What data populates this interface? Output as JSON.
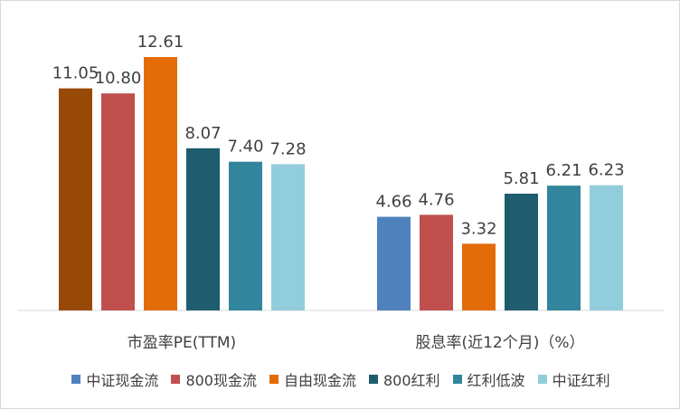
{
  "chart_data": {
    "type": "bar",
    "categories": [
      "市盈率PE(TTM)",
      "股息率(近12个月)（%）"
    ],
    "series": [
      {
        "name": "中证现金流",
        "values": [
          11.05,
          4.66
        ],
        "color": "#4F81BD",
        "labels": [
          "11.05",
          "4.66"
        ]
      },
      {
        "name": "800现金流",
        "values": [
          10.8,
          4.76
        ],
        "color": "#C0504D",
        "labels": [
          "10.80",
          "4.76"
        ]
      },
      {
        "name": "自由现金流",
        "values": [
          12.61,
          3.32
        ],
        "color": "#E36C09",
        "labels": [
          "12.61",
          "3.32"
        ]
      },
      {
        "name": "800红利",
        "values": [
          8.07,
          5.81
        ],
        "color": "#1F5C6E",
        "labels": [
          "8.07",
          "5.81"
        ]
      },
      {
        "name": "红利低波",
        "values": [
          7.4,
          6.21
        ],
        "color": "#31859C",
        "labels": [
          "7.40",
          "6.21"
        ]
      },
      {
        "name": "中证红利",
        "values": [
          7.28,
          6.23
        ],
        "color": "#92CDDC",
        "labels": [
          "7.28",
          "6.23"
        ]
      }
    ],
    "first_bar_color_override": "#984807",
    "legend_position": "bottom",
    "grid": false,
    "ylim": [
      0,
      14
    ]
  }
}
